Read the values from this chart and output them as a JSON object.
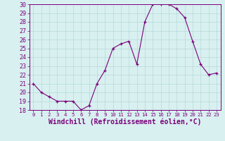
{
  "x": [
    0,
    1,
    2,
    3,
    4,
    5,
    6,
    7,
    8,
    9,
    10,
    11,
    12,
    13,
    14,
    15,
    16,
    17,
    18,
    19,
    20,
    21,
    22,
    23
  ],
  "y": [
    21,
    20,
    19.5,
    19,
    19,
    19,
    18,
    18.5,
    21,
    22.5,
    25,
    25.5,
    25.8,
    23.2,
    28,
    30,
    30,
    30,
    29.5,
    28.5,
    25.8,
    23.2,
    22,
    22.2
  ],
  "line_color": "#7b007b",
  "marker": "+",
  "marker_size": 3,
  "bg_color": "#d8f0f0",
  "grid_color": "#b8d8d8",
  "xlabel": "Windchill (Refroidissement éolien,°C)",
  "ylim": [
    18,
    30
  ],
  "xlim": [
    -0.5,
    23.5
  ],
  "yticks": [
    18,
    19,
    20,
    21,
    22,
    23,
    24,
    25,
    26,
    27,
    28,
    29,
    30
  ],
  "xticks": [
    0,
    1,
    2,
    3,
    4,
    5,
    6,
    7,
    8,
    9,
    10,
    11,
    12,
    13,
    14,
    15,
    16,
    17,
    18,
    19,
    20,
    21,
    22,
    23
  ],
  "tick_fontsize": 6,
  "xlabel_fontsize": 7,
  "spine_color": "#7b007b"
}
